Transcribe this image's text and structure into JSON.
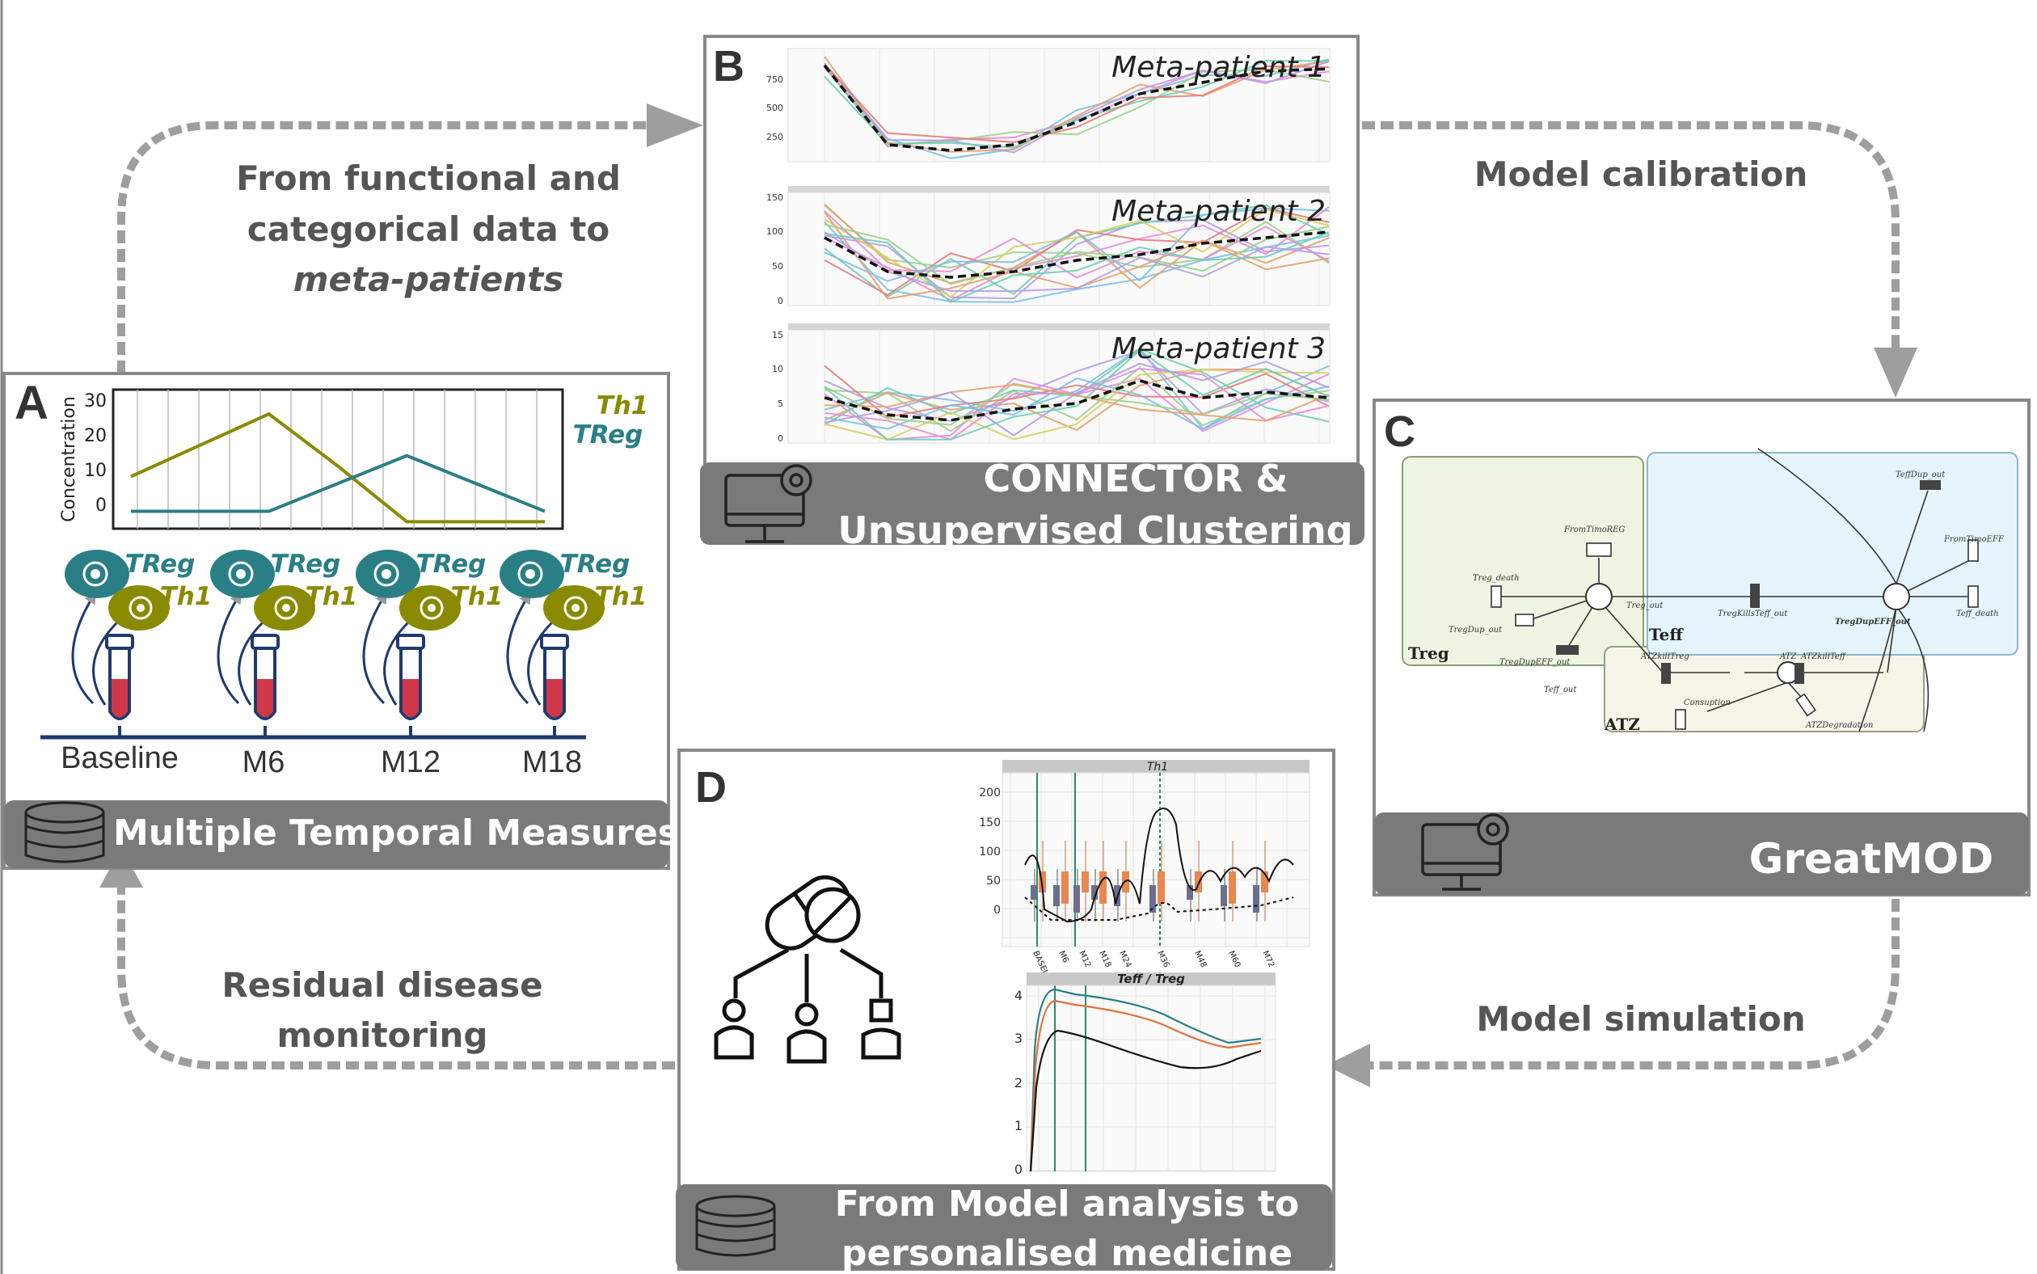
{
  "flow_labels": {
    "a_to_b": [
      "From functional and",
      "categorical data to",
      "meta-patients"
    ],
    "b_to_c": "Model calibration",
    "c_to_d": "Model simulation",
    "d_to_a": [
      "Residual disease",
      "monitoring"
    ]
  },
  "panel_a": {
    "letter": "A",
    "footer": "Multiple Temporal Measures",
    "ylabel": "Concentration",
    "timepoints": [
      "Baseline",
      "M6",
      "M12",
      "M18"
    ],
    "cell_labels": {
      "treg": "TReg",
      "th1": "Th1"
    },
    "legend": {
      "th1": "Th1",
      "treg": "TReg"
    },
    "colors": {
      "th1": "#8a8a00",
      "treg": "#2a7f86"
    },
    "chart_data": {
      "type": "line",
      "ylabel": "Concentration",
      "yticks": [
        "0",
        "10",
        "20",
        "30"
      ],
      "x": [
        0,
        1,
        2,
        3,
        4,
        5,
        6
      ],
      "ylim": [
        -5,
        35
      ],
      "series": [
        {
          "name": "Th1",
          "values": [
            10,
            19,
            28,
            13,
            -3,
            -3,
            -3
          ]
        },
        {
          "name": "TReg",
          "values": [
            0,
            0,
            0,
            8,
            16,
            8,
            0
          ]
        }
      ]
    }
  },
  "panel_b": {
    "letter": "B",
    "footer": [
      "CONNECTOR &",
      "Unsupervised Clustering"
    ],
    "charts": [
      {
        "title": "Meta-patient 1",
        "yticks": [
          "750",
          "500",
          "250"
        ]
      },
      {
        "title": "Meta-patient 2",
        "yticks": [
          "150",
          "100",
          "50",
          "0"
        ]
      },
      {
        "title": "Meta-patient 3",
        "yticks": [
          "15",
          "10",
          "5",
          "0"
        ]
      }
    ]
  },
  "panel_c": {
    "letter": "C",
    "footer": "GreatMOD",
    "regions": {
      "treg": "Treg",
      "teff": "Teff",
      "atz": "ATZ"
    },
    "nodes": {
      "from_timo_reg": "FromTimoREG",
      "treg_death": "Treg_death",
      "treg_dup_out": "TregDup_out",
      "treg_dup_eff_out": "TregDupEFF_out",
      "treg_kills_teff": "TregKillsTeff_out",
      "teff_dup_out": "TeffDup_out",
      "from_timo_eff": "FromTimoEFF",
      "teff_death": "Teff_death",
      "teff_dup_eff": "TregDupEFF_out",
      "atz_kill_treg": "ATZkillTreg",
      "atz": "ATZ",
      "atz_kill_teff": "ATZkillTeff",
      "consumption": "Consuption",
      "atz_degradation": "ATZDegradation",
      "teff_out": "Teff_out",
      "treg_out": "Treg_out"
    }
  },
  "panel_d": {
    "letter": "D",
    "footer": [
      "From Model analysis to",
      "personalised medicine"
    ],
    "chart1_title": "Th1",
    "chart1_yticks": [
      "200",
      "150",
      "100",
      "50",
      "0"
    ],
    "chart1_xticks": [
      "BASELINE",
      "M6",
      "M12",
      "M18",
      "M24",
      "M36",
      "M48",
      "M60",
      "M72"
    ],
    "chart2_title": "Teff / Treg",
    "chart2_yticks": [
      "4",
      "3",
      "2",
      "1",
      "0"
    ]
  }
}
